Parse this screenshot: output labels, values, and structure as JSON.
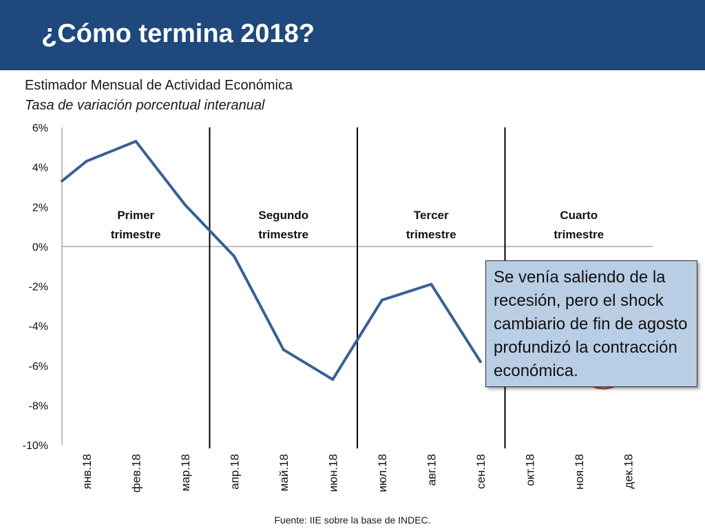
{
  "slide": {
    "title": "¿Cómo termina 2018?",
    "accent_color": "#1f497d"
  },
  "chart_data": {
    "type": "line",
    "title": "Estimador Mensual de Actividad Económica",
    "subtitle": "Tasa de variación porcentual interanual",
    "categories": [
      "янв.18",
      "фев.18",
      "мар.18",
      "апр.18",
      "май.18",
      "июн.18",
      "июл.18",
      "авг.18",
      "сен.18",
      "окт.18",
      "ноя.18",
      "дек.18"
    ],
    "series": [
      {
        "values": [
          4.3,
          5.3,
          2.1,
          -0.5,
          -5.2,
          -6.7,
          -2.7,
          -1.9,
          -5.8,
          null,
          null,
          null
        ],
        "color": "#3a5f95"
      }
    ],
    "series_start_value": 3.3,
    "ylim": [
      -10,
      6
    ],
    "yticks": [
      6,
      4,
      2,
      0,
      -2,
      -4,
      -6,
      -8,
      -10
    ],
    "ytick_labels": [
      "6%",
      "4%",
      "2%",
      "0%",
      "-2%",
      "-4%",
      "-6%",
      "-8%",
      "-10%"
    ],
    "grid": false,
    "quarter_dividers_after_index": [
      2,
      5,
      8
    ],
    "quarters": [
      {
        "line1": "Primer",
        "line2": "trimestre"
      },
      {
        "line1": "Segundo",
        "line2": "trimestre"
      },
      {
        "line1": "Tercer",
        "line2": "trimestre"
      },
      {
        "line1": "Cuarto",
        "line2": "trimestre"
      }
    ]
  },
  "callout": {
    "text": "Se venía saliendo de la recesión, pero el shock cambiario de fin de agosto profundizó la contracción económica.",
    "background": "#b9cde5"
  },
  "source": "Fuente: IIE sobre la base de INDEC."
}
